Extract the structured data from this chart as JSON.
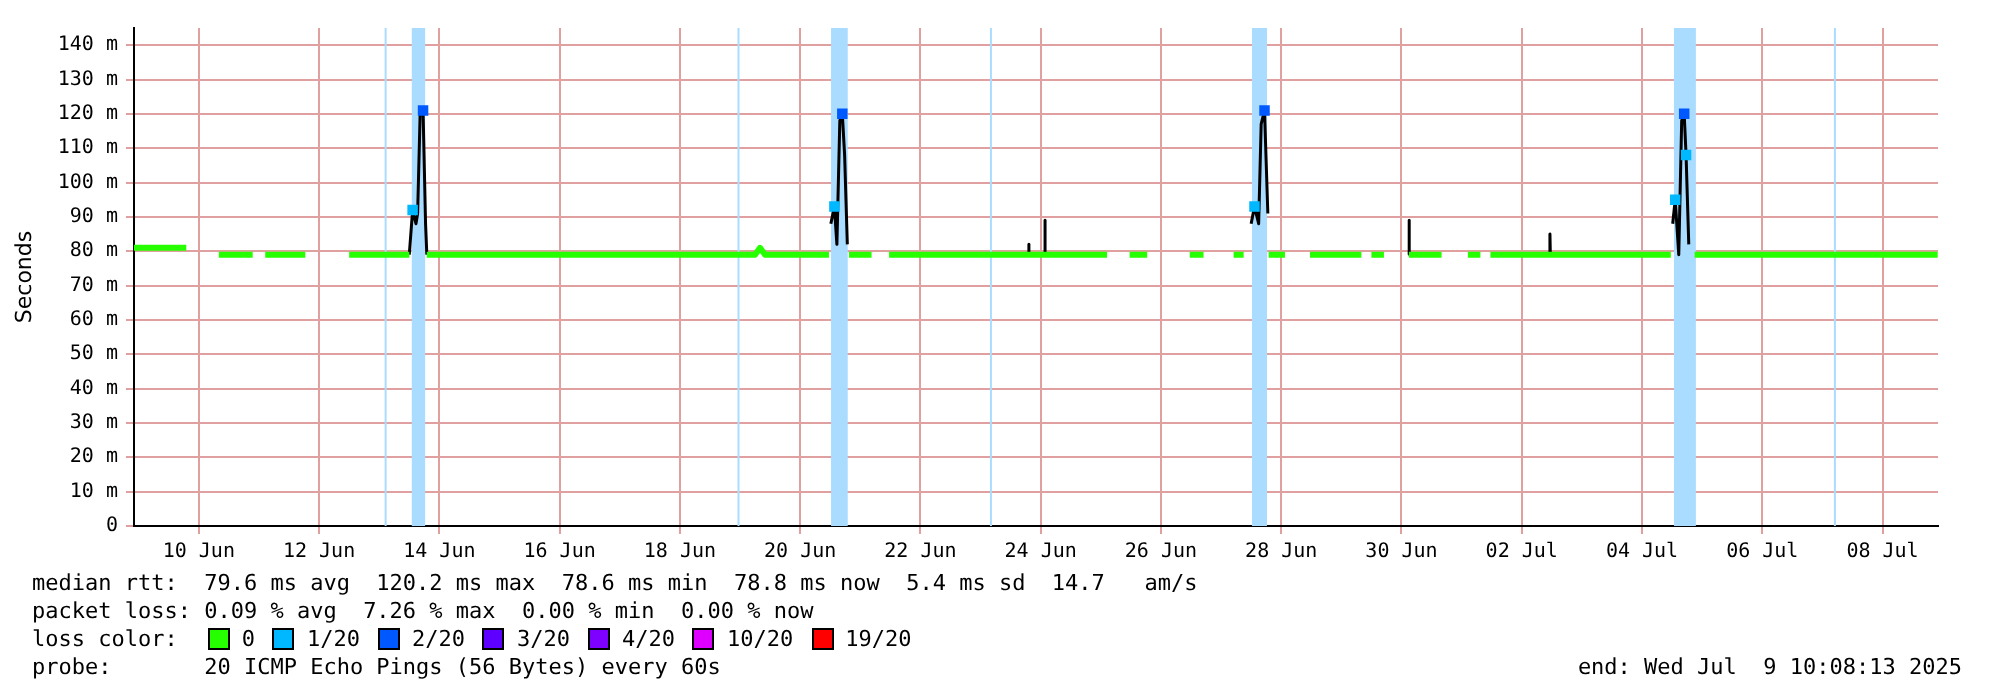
{
  "chart_data": {
    "type": "line",
    "ylabel": "Seconds",
    "legend_title": "loss color:",
    "legend": "bottom",
    "grid": true,
    "marker": "none",
    "xlim": [
      "2025-06-09T10:08",
      "2025-07-09T10:08"
    ],
    "xticks": [
      {
        "value": "2025-06-10T12:00",
        "label": "10 Jun"
      },
      {
        "value": "2025-06-12T12:00",
        "label": "12 Jun"
      },
      {
        "value": "2025-06-14T12:00",
        "label": "14 Jun"
      },
      {
        "value": "2025-06-16T12:00",
        "label": "16 Jun"
      },
      {
        "value": "2025-06-18T12:00",
        "label": "18 Jun"
      },
      {
        "value": "2025-06-20T12:00",
        "label": "20 Jun"
      },
      {
        "value": "2025-06-22T12:00",
        "label": "22 Jun"
      },
      {
        "value": "2025-06-24T12:00",
        "label": "24 Jun"
      },
      {
        "value": "2025-06-26T12:00",
        "label": "26 Jun"
      },
      {
        "value": "2025-06-28T12:00",
        "label": "28 Jun"
      },
      {
        "value": "2025-06-30T12:00",
        "label": "30 Jun"
      },
      {
        "value": "2025-07-02T12:00",
        "label": "02 Jul"
      },
      {
        "value": "2025-07-04T12:00",
        "label": "04 Jul"
      },
      {
        "value": "2025-07-06T12:00",
        "label": "06 Jul"
      },
      {
        "value": "2025-07-08T12:00",
        "label": "08 Jul"
      }
    ],
    "ylim": [
      0,
      145
    ],
    "yticks": [
      0,
      {
        "value": 10,
        "label": "10 m"
      },
      {
        "value": 20,
        "label": "20 m"
      },
      {
        "value": 30,
        "label": "30 m"
      },
      {
        "value": 40,
        "label": "40 m"
      },
      {
        "value": 50,
        "label": "50 m"
      },
      {
        "value": 60,
        "label": "60 m"
      },
      {
        "value": 70,
        "label": "70 m"
      },
      {
        "value": 80,
        "label": "80 m"
      },
      {
        "value": 90,
        "label": "90 m"
      },
      {
        "value": 100,
        "label": "100 m"
      },
      {
        "value": 110,
        "label": "110 m"
      },
      {
        "value": 120,
        "label": "120 m"
      },
      {
        "value": 130,
        "label": "130 m"
      },
      {
        "value": 140,
        "label": "140 m"
      }
    ],
    "bands": [
      {
        "axis": "x",
        "from": "2025-06-13T14:10",
        "to": "2025-06-13T14:40",
        "color": "#aadcff"
      },
      {
        "axis": "x",
        "from": "2025-06-14T01:00",
        "to": "2025-06-14T06:20",
        "color": "#aadcff"
      },
      {
        "axis": "x",
        "from": "2025-06-19T11:00",
        "to": "2025-06-19T11:30",
        "color": "#aadcff"
      },
      {
        "axis": "x",
        "from": "2025-06-21T00:20",
        "to": "2025-06-21T07:00",
        "color": "#aadcff"
      },
      {
        "axis": "x",
        "from": "2025-06-23T15:45",
        "to": "2025-06-23T16:15",
        "color": "#aadcff"
      },
      {
        "axis": "x",
        "from": "2025-06-28T00:20",
        "to": "2025-06-28T06:20",
        "color": "#aadcff"
      },
      {
        "axis": "x",
        "from": "2025-07-05T00:45",
        "to": "2025-07-05T09:30",
        "color": "#aadcff"
      },
      {
        "axis": "x",
        "from": "2025-07-07T16:35",
        "to": "2025-07-07T17:05",
        "color": "#aadcff"
      }
    ],
    "series": [
      {
        "name": "0",
        "color": "#26ff00",
        "type": "line",
        "x": [
          "2025-06-09T10:08",
          "2025-06-10T07:00",
          "2025-06-10T13:00",
          "2025-06-10T20:00",
          "2025-06-11T09:30",
          "2025-06-11T12:00",
          "2025-06-11T14:30",
          "2025-06-12T06:30",
          "2025-06-12T15:00",
          "2025-06-13T00:00",
          "2025-06-14T00:00",
          "2025-06-14T03:00",
          "2025-06-14T07:00",
          "2025-06-19T18:00",
          "2025-06-19T20:00",
          "2025-06-19T22:00",
          "2025-06-20T23:30",
          "2025-06-21T03:00",
          "2025-06-21T07:30",
          "2025-06-21T16:30",
          "2025-06-21T20:00",
          "2025-06-21T23:30",
          "2025-06-25T14:30",
          "2025-06-25T18:00",
          "2025-06-25T23:30",
          "2025-06-26T06:30",
          "2025-06-26T15:00",
          "2025-06-26T23:30",
          "2025-06-27T05:00",
          "2025-06-27T10:00",
          "2025-06-27T17:00",
          "2025-06-27T21:00",
          "2025-06-28T03:00",
          "2025-06-28T07:00",
          "2025-06-28T13:30",
          "2025-06-28T18:00",
          "2025-06-28T23:30",
          "2025-06-29T20:00",
          "2025-06-29T22:00",
          "2025-06-30T00:00",
          "2025-06-30T05:00",
          "2025-06-30T10:00",
          "2025-06-30T15:00",
          "2025-07-01T04:00",
          "2025-07-01T10:00",
          "2025-07-01T14:30",
          "2025-07-01T19:30",
          "2025-07-01T21:30",
          "2025-07-01T23:30",
          "2025-07-04T23:30",
          "2025-07-05T03:00",
          "2025-07-05T09:00",
          "2025-07-09T10:00"
        ],
        "values": [
          81,
          81,
          null,
          79,
          79,
          null,
          79,
          79,
          null,
          79,
          79,
          null,
          79,
          79,
          81,
          79,
          79,
          null,
          79,
          79,
          null,
          79,
          79,
          null,
          79,
          79,
          null,
          79,
          79,
          null,
          79,
          79,
          null,
          79,
          79,
          null,
          79,
          79,
          null,
          79,
          79,
          null,
          79,
          79,
          null,
          79,
          79,
          null,
          79,
          79,
          null,
          79,
          79
        ]
      },
      {
        "color": "#000000",
        "type": "line",
        "x": [
          "2025-06-14T00:00",
          "2025-06-14T01:20",
          "2025-06-14T02:40",
          "2025-06-14T03:20",
          "2025-06-14T04:20",
          "2025-06-14T05:30",
          "2025-06-14T06:30",
          "2025-06-14T07:00",
          "2025-06-20T12:00",
          "2025-06-21T00:15",
          "2025-06-21T01:40",
          "2025-06-21T02:40",
          "2025-06-21T03:50",
          "2025-06-21T04:50",
          "2025-06-21T05:45",
          "2025-06-21T06:50",
          "2025-06-22T12:00",
          "2025-06-24T07:00",
          "2025-06-24T07:12",
          "2025-06-24T07:24",
          "2025-06-24T10:00",
          "2025-06-24T13:30",
          "2025-06-24T13:40",
          "2025-06-24T13:50",
          "2025-06-26T12:00",
          "2025-06-28T00:00",
          "2025-06-28T01:20",
          "2025-06-28T03:00",
          "2025-06-28T04:00",
          "2025-06-28T05:20",
          "2025-06-28T06:40",
          "2025-06-29T12:00",
          "2025-06-30T14:50",
          "2025-06-30T15:00",
          "2025-06-30T15:10",
          "2025-07-01T12:00",
          "2025-07-02T23:05",
          "2025-07-02T23:15",
          "2025-07-02T23:25",
          "2025-07-03T12:00",
          "2025-07-05T00:15",
          "2025-07-05T01:15",
          "2025-07-05T02:40",
          "2025-07-05T03:50",
          "2025-07-05T04:50",
          "2025-07-05T05:35",
          "2025-07-05T06:40"
        ],
        "values": [
          79,
          92,
          88,
          91,
          120,
          121,
          88,
          79,
          null,
          88,
          93,
          82,
          118,
          120,
          108,
          82,
          null,
          79,
          82,
          79,
          null,
          79,
          89,
          79,
          null,
          88,
          93,
          88,
          117,
          121,
          91,
          null,
          79,
          89,
          79,
          null,
          79,
          85,
          79,
          null,
          88,
          95,
          79,
          118,
          120,
          108,
          82
        ]
      },
      {
        "name": "1/20",
        "color": "#00b8ff",
        "type": "scatter",
        "marker": "square",
        "x": [
          "2025-06-14T01:20",
          "2025-06-21T01:40",
          "2025-06-28T01:20",
          "2025-07-05T01:15",
          "2025-07-05T05:35"
        ],
        "values": [
          92,
          93,
          93,
          95,
          108
        ]
      },
      {
        "name": "2/20",
        "color": "#0059ff",
        "type": "scatter",
        "marker": "square",
        "x": [
          "2025-06-14T05:30",
          "2025-06-21T04:50",
          "2025-06-28T05:20",
          "2025-07-05T04:50"
        ],
        "values": [
          121,
          120,
          121,
          120
        ]
      },
      {
        "name": "3/20",
        "color": "#5e00ff",
        "type": "scatter",
        "marker": "square"
      },
      {
        "name": "4/20",
        "color": "#7e00ff",
        "type": "scatter",
        "marker": "square"
      },
      {
        "name": "10/20",
        "color": "#dd00ff",
        "type": "scatter",
        "marker": "square"
      },
      {
        "name": "19/20",
        "color": "#ff0000",
        "type": "scatter",
        "marker": "square"
      }
    ],
    "annotations": [
      "median rtt:  79.6 ms avg  120.2 ms max  78.6 ms min  78.8 ms now  5.4 ms sd  14.7   am/s",
      "packet loss: 0.09 % avg  7.26 % max  0.00 % min  0.00 % now",
      "probe:       20 ICMP Echo Pings (56 Bytes) every 60s",
      "end: Wed Jul  9 10:08:13 2025"
    ]
  }
}
